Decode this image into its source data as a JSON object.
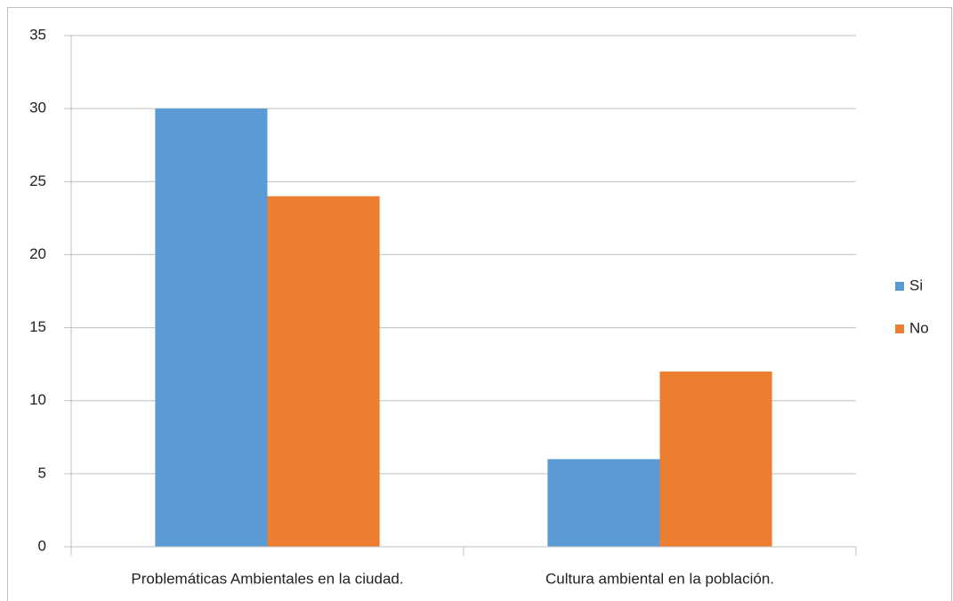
{
  "chart_data": {
    "type": "bar",
    "categories": [
      "Problemáticas Ambientales en la ciudad.",
      "Cultura ambiental en la población."
    ],
    "series": [
      {
        "name": "Si",
        "color": "#5b9bd5",
        "values": [
          30,
          6
        ]
      },
      {
        "name": "No",
        "color": "#ed7d31",
        "values": [
          24,
          12
        ]
      }
    ],
    "ylim": [
      0,
      35
    ],
    "yticks": [
      0,
      5,
      10,
      15,
      20,
      25,
      30,
      35
    ],
    "grid": true,
    "legend": "right"
  }
}
